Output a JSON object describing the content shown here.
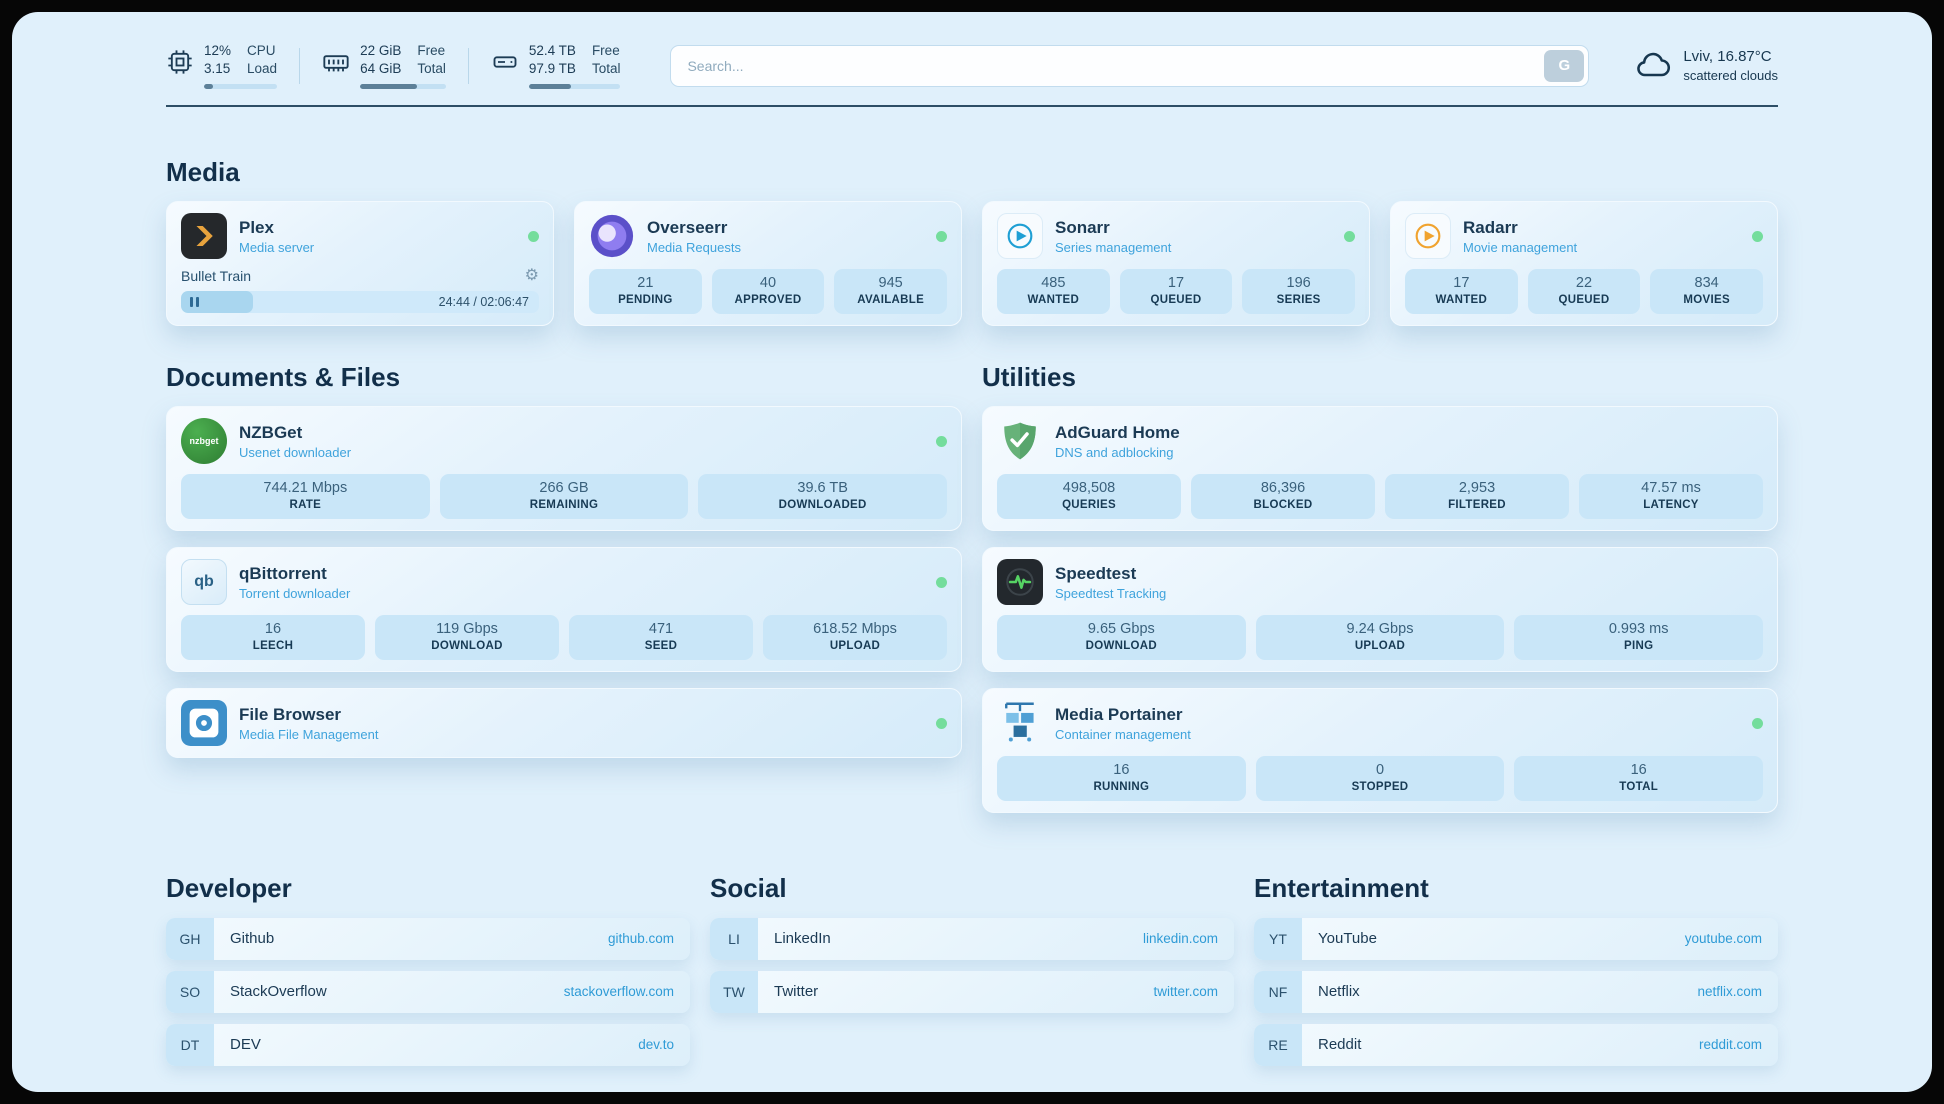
{
  "colors": {
    "background": "#e0f0fb",
    "accent_blue": "#2f9bd6",
    "status_green": "#74dd9c",
    "text_dark": "#17374f",
    "tile_blue": "#c9e6f8"
  },
  "icons": {
    "gear": "⚙"
  },
  "header": {
    "cpu": {
      "value_line1": "12%",
      "value_line2": "3.15",
      "label_line1": "CPU",
      "label_line2": "Load",
      "progress": 12
    },
    "ram": {
      "value_line1": "22 GiB",
      "value_line2": "64 GiB",
      "label_line1": "Free",
      "label_line2": "Total",
      "progress": 66
    },
    "disk": {
      "value_line1": "52.4 TB",
      "value_line2": "97.9 TB",
      "label_line1": "Free",
      "label_line2": "Total",
      "progress": 46
    },
    "search": {
      "placeholder": "Search...",
      "button_label": "G"
    },
    "weather": {
      "location": "Lviv, 16.87°C",
      "condition": "scattered clouds"
    }
  },
  "sections": {
    "media": {
      "title": "Media",
      "plex": {
        "name": "Plex",
        "subtitle": "Media server",
        "now_playing": "Bullet Train",
        "time": "24:44 / 02:06:47",
        "progress": 20
      },
      "overseerr": {
        "name": "Overseerr",
        "subtitle": "Media Requests",
        "stats": [
          {
            "value": "21",
            "label": "PENDING"
          },
          {
            "value": "40",
            "label": "APPROVED"
          },
          {
            "value": "945",
            "label": "AVAILABLE"
          }
        ]
      },
      "sonarr": {
        "name": "Sonarr",
        "subtitle": "Series management",
        "stats": [
          {
            "value": "485",
            "label": "WANTED"
          },
          {
            "value": "17",
            "label": "QUEUED"
          },
          {
            "value": "196",
            "label": "SERIES"
          }
        ]
      },
      "radarr": {
        "name": "Radarr",
        "subtitle": "Movie management",
        "stats": [
          {
            "value": "17",
            "label": "WANTED"
          },
          {
            "value": "22",
            "label": "QUEUED"
          },
          {
            "value": "834",
            "label": "MOVIES"
          }
        ]
      }
    },
    "documents": {
      "title": "Documents & Files",
      "nzbget": {
        "name": "NZBGet",
        "subtitle": "Usenet downloader",
        "icon_text": "nzbget",
        "stats": [
          {
            "value": "744.21 Mbps",
            "label": "RATE"
          },
          {
            "value": "266 GB",
            "label": "REMAINING"
          },
          {
            "value": "39.6 TB",
            "label": "DOWNLOADED"
          }
        ]
      },
      "qbittorrent": {
        "name": "qBittorrent",
        "subtitle": "Torrent downloader",
        "icon_text": "qb",
        "stats": [
          {
            "value": "16",
            "label": "LEECH"
          },
          {
            "value": "119 Gbps",
            "label": "DOWNLOAD"
          },
          {
            "value": "471",
            "label": "SEED"
          },
          {
            "value": "618.52 Mbps",
            "label": "UPLOAD"
          }
        ]
      },
      "filebrowser": {
        "name": "File Browser",
        "subtitle": "Media File Management"
      }
    },
    "utilities": {
      "title": "Utilities",
      "adguard": {
        "name": "AdGuard Home",
        "subtitle": "DNS and adblocking",
        "stats": [
          {
            "value": "498,508",
            "label": "QUERIES"
          },
          {
            "value": "86,396",
            "label": "BLOCKED"
          },
          {
            "value": "2,953",
            "label": "FILTERED"
          },
          {
            "value": "47.57 ms",
            "label": "LATENCY"
          }
        ]
      },
      "speedtest": {
        "name": "Speedtest",
        "subtitle": "Speedtest Tracking",
        "stats": [
          {
            "value": "9.65 Gbps",
            "label": "DOWNLOAD"
          },
          {
            "value": "9.24 Gbps",
            "label": "UPLOAD"
          },
          {
            "value": "0.993 ms",
            "label": "PING"
          }
        ]
      },
      "portainer": {
        "name": "Media Portainer",
        "subtitle": "Container management",
        "stats": [
          {
            "value": "16",
            "label": "RUNNING"
          },
          {
            "value": "0",
            "label": "STOPPED"
          },
          {
            "value": "16",
            "label": "TOTAL"
          }
        ]
      }
    },
    "bookmarks": [
      {
        "title": "Developer",
        "items": [
          {
            "abbr": "GH",
            "name": "Github",
            "url": "github.com"
          },
          {
            "abbr": "SO",
            "name": "StackOverflow",
            "url": "stackoverflow.com"
          },
          {
            "abbr": "DT",
            "name": "DEV",
            "url": "dev.to"
          }
        ]
      },
      {
        "title": "Social",
        "items": [
          {
            "abbr": "LI",
            "name": "LinkedIn",
            "url": "linkedin.com"
          },
          {
            "abbr": "TW",
            "name": "Twitter",
            "url": "twitter.com"
          }
        ]
      },
      {
        "title": "Entertainment",
        "items": [
          {
            "abbr": "YT",
            "name": "YouTube",
            "url": "youtube.com"
          },
          {
            "abbr": "NF",
            "name": "Netflix",
            "url": "netflix.com"
          },
          {
            "abbr": "RE",
            "name": "Reddit",
            "url": "reddit.com"
          }
        ]
      }
    ]
  }
}
